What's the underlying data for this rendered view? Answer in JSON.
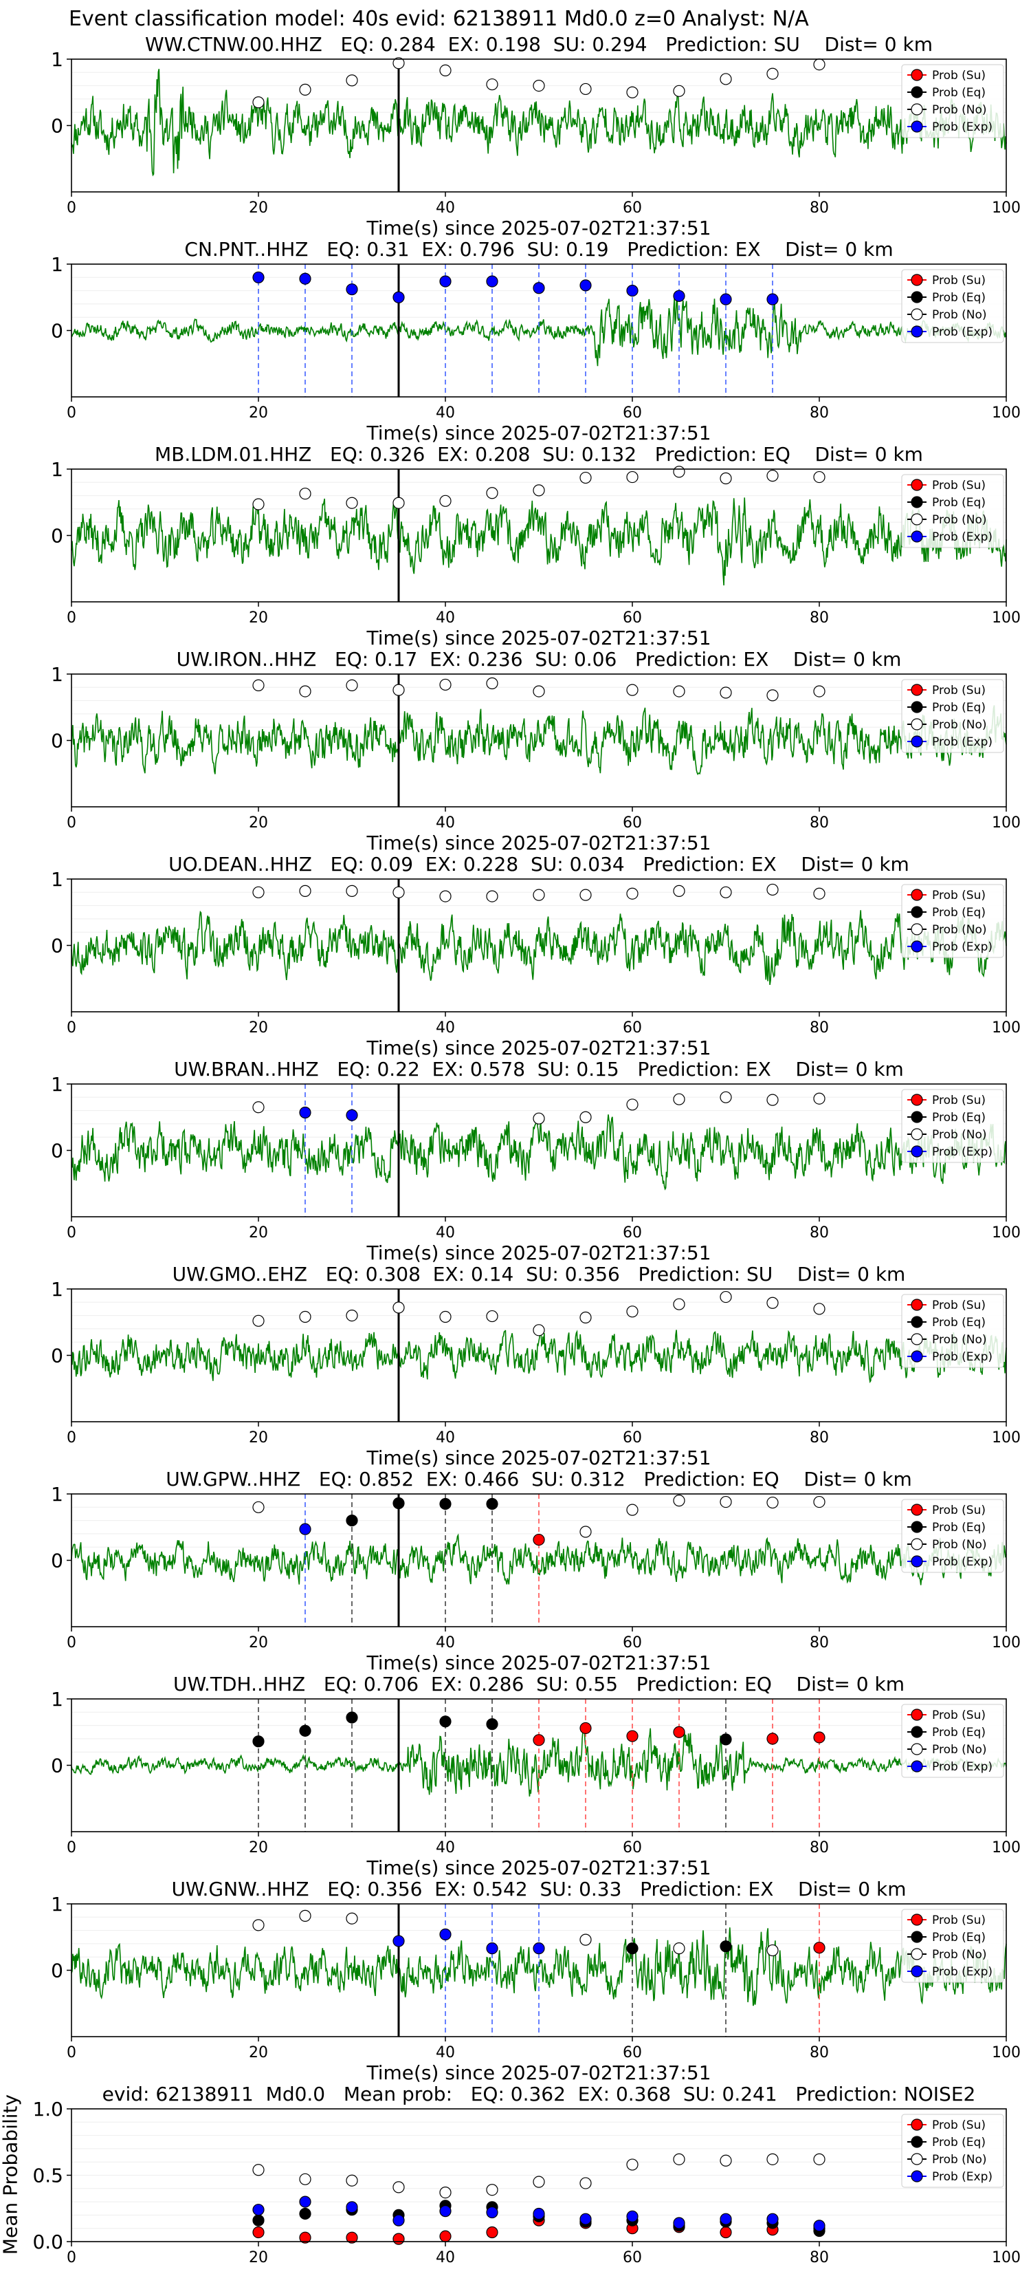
{
  "header": {
    "title": "Event classification model: 40s evid: 62138911 Md0.0 z=0 Analyst: N/A"
  },
  "legend_labels": [
    "Prob (Su)",
    "Prob (Eq)",
    "Prob (No)",
    "Prob (Exp)"
  ],
  "colors": {
    "su": "#ff0000",
    "eq": "#000000",
    "no": "#ffffff",
    "exp": "#0000ff",
    "waveform": "#008000",
    "vline": "#000000"
  },
  "waveform_xlabel": "Time(s) since 2025-07-02T21:37:51",
  "chart_data": [
    {
      "type": "line",
      "station": "WW.CTNW.00.HHZ",
      "title": "WW.CTNW.00.HHZ   EQ: 0.284  EX: 0.198  SU: 0.294   Prediction: SU    Dist= 0 km",
      "xlim": [
        0,
        100
      ],
      "ylim": [
        -1,
        1
      ],
      "xticks": [
        0,
        20,
        40,
        60,
        80,
        100
      ],
      "yticks": [
        0,
        1
      ],
      "arrival": 35,
      "amp": 0.55,
      "seed": 11,
      "burst": [
        8,
        12,
        2.2
      ],
      "points": [
        {
          "t": 20,
          "cls": "no",
          "p": 0.35
        },
        {
          "t": 25,
          "cls": "no",
          "p": 0.54
        },
        {
          "t": 30,
          "cls": "no",
          "p": 0.68
        },
        {
          "t": 35,
          "cls": "no",
          "p": 0.94
        },
        {
          "t": 40,
          "cls": "no",
          "p": 0.83
        },
        {
          "t": 45,
          "cls": "no",
          "p": 0.62
        },
        {
          "t": 50,
          "cls": "no",
          "p": 0.6
        },
        {
          "t": 55,
          "cls": "no",
          "p": 0.55
        },
        {
          "t": 60,
          "cls": "no",
          "p": 0.5
        },
        {
          "t": 65,
          "cls": "no",
          "p": 0.52
        },
        {
          "t": 70,
          "cls": "no",
          "p": 0.7
        },
        {
          "t": 75,
          "cls": "no",
          "p": 0.78
        },
        {
          "t": 80,
          "cls": "no",
          "p": 0.92
        }
      ]
    },
    {
      "type": "line",
      "station": "CN.PNT..HHZ",
      "title": "CN.PNT..HHZ   EQ: 0.31  EX: 0.796  SU: 0.19   Prediction: EX    Dist= 0 km",
      "xlim": [
        0,
        100
      ],
      "ylim": [
        -1,
        1
      ],
      "xticks": [
        0,
        20,
        40,
        60,
        80,
        100
      ],
      "yticks": [
        0,
        1
      ],
      "arrival": 35,
      "amp": 0.18,
      "seed": 23,
      "burst": [
        56,
        78,
        3.5
      ],
      "points": [
        {
          "t": 20,
          "cls": "exp",
          "p": 0.8
        },
        {
          "t": 25,
          "cls": "exp",
          "p": 0.78
        },
        {
          "t": 30,
          "cls": "exp",
          "p": 0.62
        },
        {
          "t": 35,
          "cls": "exp",
          "p": 0.5
        },
        {
          "t": 40,
          "cls": "exp",
          "p": 0.74
        },
        {
          "t": 45,
          "cls": "exp",
          "p": 0.74
        },
        {
          "t": 50,
          "cls": "exp",
          "p": 0.64
        },
        {
          "t": 55,
          "cls": "exp",
          "p": 0.68
        },
        {
          "t": 60,
          "cls": "exp",
          "p": 0.6
        },
        {
          "t": 65,
          "cls": "exp",
          "p": 0.52
        },
        {
          "t": 70,
          "cls": "exp",
          "p": 0.47
        },
        {
          "t": 75,
          "cls": "exp",
          "p": 0.47
        }
      ]
    },
    {
      "type": "line",
      "station": "MB.LDM.01.HHZ",
      "title": "MB.LDM.01.HHZ   EQ: 0.326  EX: 0.208  SU: 0.132   Prediction: EQ    Dist= 0 km",
      "xlim": [
        0,
        100
      ],
      "ylim": [
        -1,
        1
      ],
      "xticks": [
        0,
        20,
        40,
        60,
        80,
        100
      ],
      "yticks": [
        0,
        1
      ],
      "arrival": 35,
      "amp": 0.6,
      "seed": 37,
      "burst": [
        68,
        72,
        1.4
      ],
      "points": [
        {
          "t": 20,
          "cls": "no",
          "p": 0.47
        },
        {
          "t": 25,
          "cls": "no",
          "p": 0.63
        },
        {
          "t": 30,
          "cls": "no",
          "p": 0.49
        },
        {
          "t": 35,
          "cls": "no",
          "p": 0.49
        },
        {
          "t": 40,
          "cls": "no",
          "p": 0.52
        },
        {
          "t": 45,
          "cls": "no",
          "p": 0.64
        },
        {
          "t": 50,
          "cls": "no",
          "p": 0.68
        },
        {
          "t": 55,
          "cls": "no",
          "p": 0.87
        },
        {
          "t": 60,
          "cls": "no",
          "p": 0.88
        },
        {
          "t": 65,
          "cls": "no",
          "p": 0.96
        },
        {
          "t": 70,
          "cls": "no",
          "p": 0.86
        },
        {
          "t": 75,
          "cls": "no",
          "p": 0.9
        },
        {
          "t": 80,
          "cls": "no",
          "p": 0.88
        }
      ]
    },
    {
      "type": "line",
      "station": "UW.IRON..HHZ",
      "title": "UW.IRON..HHZ   EQ: 0.17  EX: 0.236  SU: 0.06   Prediction: EX    Dist= 0 km",
      "xlim": [
        0,
        100
      ],
      "ylim": [
        -1,
        1
      ],
      "xticks": [
        0,
        20,
        40,
        60,
        80,
        100
      ],
      "yticks": [
        0,
        1
      ],
      "arrival": 35,
      "amp": 0.55,
      "seed": 41,
      "burst": [
        0,
        0,
        1
      ],
      "points": [
        {
          "t": 20,
          "cls": "no",
          "p": 0.83
        },
        {
          "t": 25,
          "cls": "no",
          "p": 0.74
        },
        {
          "t": 30,
          "cls": "no",
          "p": 0.83
        },
        {
          "t": 35,
          "cls": "no",
          "p": 0.76
        },
        {
          "t": 40,
          "cls": "no",
          "p": 0.84
        },
        {
          "t": 45,
          "cls": "no",
          "p": 0.86
        },
        {
          "t": 50,
          "cls": "no",
          "p": 0.74
        },
        {
          "t": 60,
          "cls": "no",
          "p": 0.76
        },
        {
          "t": 65,
          "cls": "no",
          "p": 0.74
        },
        {
          "t": 70,
          "cls": "no",
          "p": 0.72
        },
        {
          "t": 75,
          "cls": "no",
          "p": 0.68
        },
        {
          "t": 80,
          "cls": "no",
          "p": 0.74
        }
      ]
    },
    {
      "type": "line",
      "station": "UO.DEAN..HHZ",
      "title": "UO.DEAN..HHZ   EQ: 0.09  EX: 0.228  SU: 0.034   Prediction: EX    Dist= 0 km",
      "xlim": [
        0,
        100
      ],
      "ylim": [
        -1,
        1
      ],
      "xticks": [
        0,
        20,
        40,
        60,
        80,
        100
      ],
      "yticks": [
        0,
        1
      ],
      "arrival": 35,
      "amp": 0.55,
      "seed": 53,
      "burst": [
        74,
        78,
        1.6
      ],
      "points": [
        {
          "t": 20,
          "cls": "no",
          "p": 0.8
        },
        {
          "t": 25,
          "cls": "no",
          "p": 0.82
        },
        {
          "t": 30,
          "cls": "no",
          "p": 0.82
        },
        {
          "t": 35,
          "cls": "no",
          "p": 0.8
        },
        {
          "t": 40,
          "cls": "no",
          "p": 0.74
        },
        {
          "t": 45,
          "cls": "no",
          "p": 0.74
        },
        {
          "t": 50,
          "cls": "no",
          "p": 0.76
        },
        {
          "t": 55,
          "cls": "no",
          "p": 0.76
        },
        {
          "t": 60,
          "cls": "no",
          "p": 0.78
        },
        {
          "t": 65,
          "cls": "no",
          "p": 0.82
        },
        {
          "t": 70,
          "cls": "no",
          "p": 0.8
        },
        {
          "t": 75,
          "cls": "no",
          "p": 0.84
        },
        {
          "t": 80,
          "cls": "no",
          "p": 0.78
        }
      ]
    },
    {
      "type": "line",
      "station": "UW.BRAN..HHZ",
      "title": "UW.BRAN..HHZ   EQ: 0.22  EX: 0.578  SU: 0.15   Prediction: EX    Dist= 0 km",
      "xlim": [
        0,
        100
      ],
      "ylim": [
        -1,
        1
      ],
      "xticks": [
        0,
        20,
        40,
        60,
        80,
        100
      ],
      "yticks": [
        0,
        1
      ],
      "arrival": 35,
      "amp": 0.55,
      "seed": 67,
      "burst": [
        0,
        0,
        1
      ],
      "points": [
        {
          "t": 20,
          "cls": "no",
          "p": 0.65
        },
        {
          "t": 25,
          "cls": "exp",
          "p": 0.57
        },
        {
          "t": 30,
          "cls": "exp",
          "p": 0.53
        },
        {
          "t": 50,
          "cls": "no",
          "p": 0.48
        },
        {
          "t": 55,
          "cls": "no",
          "p": 0.5
        },
        {
          "t": 60,
          "cls": "no",
          "p": 0.69
        },
        {
          "t": 65,
          "cls": "no",
          "p": 0.77
        },
        {
          "t": 70,
          "cls": "no",
          "p": 0.8
        },
        {
          "t": 75,
          "cls": "no",
          "p": 0.76
        },
        {
          "t": 80,
          "cls": "no",
          "p": 0.78
        }
      ]
    },
    {
      "type": "line",
      "station": "UW.GMO..EHZ",
      "title": "UW.GMO..EHZ   EQ: 0.308  EX: 0.14  SU: 0.356   Prediction: SU    Dist= 0 km",
      "xlim": [
        0,
        100
      ],
      "ylim": [
        -1,
        1
      ],
      "xticks": [
        0,
        20,
        40,
        60,
        80,
        100
      ],
      "yticks": [
        0,
        1
      ],
      "arrival": 35,
      "amp": 0.45,
      "seed": 79,
      "burst": [
        0,
        0,
        1
      ],
      "points": [
        {
          "t": 20,
          "cls": "no",
          "p": 0.52
        },
        {
          "t": 25,
          "cls": "no",
          "p": 0.58
        },
        {
          "t": 30,
          "cls": "no",
          "p": 0.6
        },
        {
          "t": 35,
          "cls": "no",
          "p": 0.72
        },
        {
          "t": 40,
          "cls": "no",
          "p": 0.58
        },
        {
          "t": 45,
          "cls": "no",
          "p": 0.59
        },
        {
          "t": 50,
          "cls": "no",
          "p": 0.38
        },
        {
          "t": 55,
          "cls": "no",
          "p": 0.57
        },
        {
          "t": 60,
          "cls": "no",
          "p": 0.66
        },
        {
          "t": 65,
          "cls": "no",
          "p": 0.77
        },
        {
          "t": 70,
          "cls": "no",
          "p": 0.88
        },
        {
          "t": 75,
          "cls": "no",
          "p": 0.79
        },
        {
          "t": 80,
          "cls": "no",
          "p": 0.7
        }
      ]
    },
    {
      "type": "line",
      "station": "UW.GPW..HHZ",
      "title": "UW.GPW..HHZ   EQ: 0.852  EX: 0.466  SU: 0.312   Prediction: EQ    Dist= 0 km",
      "xlim": [
        0,
        100
      ],
      "ylim": [
        -1,
        1
      ],
      "xticks": [
        0,
        20,
        40,
        60,
        80,
        100
      ],
      "yticks": [
        0,
        1
      ],
      "arrival": 35,
      "amp": 0.4,
      "seed": 83,
      "burst": [
        0,
        0,
        1
      ],
      "points": [
        {
          "t": 20,
          "cls": "no",
          "p": 0.8
        },
        {
          "t": 25,
          "cls": "exp",
          "p": 0.47
        },
        {
          "t": 30,
          "cls": "eq",
          "p": 0.6
        },
        {
          "t": 35,
          "cls": "eq",
          "p": 0.86
        },
        {
          "t": 40,
          "cls": "eq",
          "p": 0.85
        },
        {
          "t": 45,
          "cls": "eq",
          "p": 0.85
        },
        {
          "t": 50,
          "cls": "su",
          "p": 0.31
        },
        {
          "t": 55,
          "cls": "no",
          "p": 0.43
        },
        {
          "t": 60,
          "cls": "no",
          "p": 0.76
        },
        {
          "t": 65,
          "cls": "no",
          "p": 0.9
        },
        {
          "t": 70,
          "cls": "no",
          "p": 0.88
        },
        {
          "t": 75,
          "cls": "no",
          "p": 0.87
        },
        {
          "t": 80,
          "cls": "no",
          "p": 0.88
        }
      ]
    },
    {
      "type": "line",
      "station": "UW.TDH..HHZ",
      "title": "UW.TDH..HHZ   EQ: 0.706  EX: 0.286  SU: 0.55   Prediction: EQ    Dist= 0 km",
      "xlim": [
        0,
        100
      ],
      "ylim": [
        -1,
        1
      ],
      "xticks": [
        0,
        20,
        40,
        60,
        80,
        100
      ],
      "yticks": [
        0,
        1
      ],
      "arrival": 35,
      "amp": 0.15,
      "seed": 97,
      "burst": [
        36,
        72,
        4.0
      ],
      "points": [
        {
          "t": 20,
          "cls": "eq",
          "p": 0.36
        },
        {
          "t": 25,
          "cls": "eq",
          "p": 0.52
        },
        {
          "t": 30,
          "cls": "eq",
          "p": 0.72
        },
        {
          "t": 40,
          "cls": "eq",
          "p": 0.66
        },
        {
          "t": 45,
          "cls": "eq",
          "p": 0.62
        },
        {
          "t": 50,
          "cls": "su",
          "p": 0.38
        },
        {
          "t": 55,
          "cls": "su",
          "p": 0.56
        },
        {
          "t": 60,
          "cls": "su",
          "p": 0.44
        },
        {
          "t": 65,
          "cls": "su",
          "p": 0.5
        },
        {
          "t": 70,
          "cls": "eq",
          "p": 0.39
        },
        {
          "t": 75,
          "cls": "su",
          "p": 0.4
        },
        {
          "t": 80,
          "cls": "su",
          "p": 0.42
        }
      ]
    },
    {
      "type": "line",
      "station": "UW.GNW..HHZ",
      "title": "UW.GNW..HHZ   EQ: 0.356  EX: 0.542  SU: 0.33   Prediction: EX    Dist= 0 km",
      "xlim": [
        0,
        100
      ],
      "ylim": [
        -1,
        1
      ],
      "xticks": [
        0,
        20,
        40,
        60,
        80,
        100
      ],
      "yticks": [
        0,
        1
      ],
      "arrival": 35,
      "amp": 0.5,
      "seed": 101,
      "burst": [
        60,
        76,
        1.6
      ],
      "points": [
        {
          "t": 20,
          "cls": "no",
          "p": 0.68
        },
        {
          "t": 25,
          "cls": "no",
          "p": 0.82
        },
        {
          "t": 30,
          "cls": "no",
          "p": 0.78
        },
        {
          "t": 35,
          "cls": "exp",
          "p": 0.44
        },
        {
          "t": 40,
          "cls": "exp",
          "p": 0.54
        },
        {
          "t": 45,
          "cls": "exp",
          "p": 0.33
        },
        {
          "t": 50,
          "cls": "exp",
          "p": 0.33
        },
        {
          "t": 55,
          "cls": "no",
          "p": 0.46
        },
        {
          "t": 60,
          "cls": "eq",
          "p": 0.33
        },
        {
          "t": 65,
          "cls": "no",
          "p": 0.33
        },
        {
          "t": 70,
          "cls": "eq",
          "p": 0.36
        },
        {
          "t": 75,
          "cls": "no",
          "p": 0.3
        },
        {
          "t": 80,
          "cls": "su",
          "p": 0.34
        }
      ]
    },
    {
      "type": "scatter",
      "title": "evid: 62138911  Md0.0   Mean prob:   EQ: 0.362  EX: 0.368  SU: 0.241   Prediction: NOISE2",
      "ylabel": "Mean Probability",
      "xlim": [
        0,
        100
      ],
      "ylim": [
        0,
        1
      ],
      "xticks": [
        0,
        20,
        40,
        60,
        80,
        100
      ],
      "yticks": [
        0.0,
        0.5,
        1.0
      ],
      "ytick_labels": [
        "0.0",
        "0.5",
        "1.0"
      ],
      "x": [
        20,
        25,
        30,
        35,
        40,
        45,
        50,
        55,
        60,
        65,
        70,
        75,
        80
      ],
      "series": [
        {
          "name": "Prob (Su)",
          "cls": "su",
          "values": [
            0.07,
            0.03,
            0.03,
            0.02,
            0.04,
            0.07,
            0.16,
            0.14,
            0.1,
            0.11,
            0.07,
            0.09,
            0.1
          ]
        },
        {
          "name": "Prob (Eq)",
          "cls": "eq",
          "values": [
            0.16,
            0.21,
            0.24,
            0.2,
            0.27,
            0.26,
            0.19,
            0.15,
            0.16,
            0.12,
            0.15,
            0.14,
            0.08
          ]
        },
        {
          "name": "Prob (No)",
          "cls": "no",
          "values": [
            0.54,
            0.47,
            0.46,
            0.41,
            0.37,
            0.39,
            0.45,
            0.44,
            0.58,
            0.62,
            0.61,
            0.62,
            0.62
          ]
        },
        {
          "name": "Prob (Exp)",
          "cls": "exp",
          "values": [
            0.24,
            0.3,
            0.26,
            0.16,
            0.23,
            0.22,
            0.21,
            0.17,
            0.19,
            0.14,
            0.17,
            0.17,
            0.12
          ]
        }
      ]
    }
  ]
}
